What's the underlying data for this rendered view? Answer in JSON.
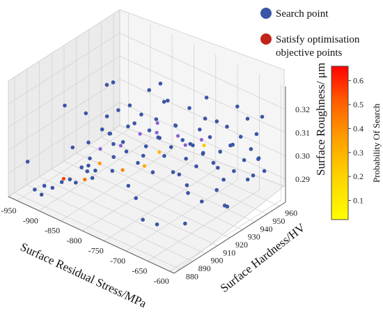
{
  "chart_data": {
    "type": "scatter",
    "title": "",
    "xlabel": "Surface Residual Stress/MPa",
    "ylabel": "Surface Hardness/HV",
    "zlabel": "Surface Roughness/ μm",
    "xlim": [
      -970,
      -590
    ],
    "ylim": [
      875,
      965
    ],
    "zlim": [
      0.28,
      0.33
    ],
    "x_ticks": [
      "-950",
      "-900",
      "-850",
      "-800",
      "-750",
      "-700",
      "-650",
      "-600"
    ],
    "y_ticks": [
      "880",
      "890",
      "900",
      "910",
      "920",
      "930",
      "940",
      "950",
      "960"
    ],
    "z_ticks": [
      "0.29",
      "0.30",
      "0.31",
      "0.32"
    ],
    "grid": true,
    "legend": {
      "placement": "top-right",
      "entries": [
        {
          "label": "Search point",
          "color": "#3b55a6"
        },
        {
          "label": "Satisfy optimisation objective points",
          "color": "#c0241a"
        }
      ]
    },
    "colorbar": {
      "label": "Probability Of Search",
      "ticks": [
        "0.1",
        "0.2",
        "0.3",
        "0.4",
        "0.5",
        "0.6"
      ],
      "range": [
        0.02,
        0.66
      ],
      "colors": [
        "#ffff00",
        "#ffd000",
        "#ff9a00",
        "#ff5a00",
        "#ff0000"
      ]
    },
    "series": [
      {
        "name": "Search point",
        "color": "#3b55a6",
        "points": [
          [
            -940,
            880,
            0.296
          ],
          [
            -935,
            884,
            0.283
          ],
          [
            -925,
            886,
            0.281
          ],
          [
            -930,
            890,
            0.283
          ],
          [
            -920,
            893,
            0.282
          ],
          [
            -910,
            897,
            0.284
          ],
          [
            -900,
            900,
            0.285
          ],
          [
            -895,
            903,
            0.283
          ],
          [
            -905,
            904,
            0.297
          ],
          [
            -890,
            906,
            0.289
          ],
          [
            -880,
            908,
            0.3
          ],
          [
            -880,
            908,
            0.29
          ],
          [
            -870,
            910,
            0.288
          ],
          [
            -860,
            912,
            0.306
          ],
          [
            -855,
            914,
            0.325
          ],
          [
            -850,
            915,
            0.304
          ],
          [
            -845,
            916,
            0.294
          ],
          [
            -840,
            918,
            0.314
          ],
          [
            -835,
            920,
            0.3
          ],
          [
            -830,
            921,
            0.296
          ],
          [
            -825,
            922,
            0.316
          ],
          [
            -820,
            924,
            0.308
          ],
          [
            -815,
            925,
            0.291
          ],
          [
            -810,
            926,
            0.312
          ],
          [
            -805,
            928,
            0.298
          ],
          [
            -800,
            929,
            0.305
          ],
          [
            -795,
            930,
            0.287
          ],
          [
            -790,
            931,
            0.31
          ],
          [
            -785,
            932,
            0.302
          ],
          [
            -780,
            934,
            0.294
          ],
          [
            -775,
            935,
            0.318
          ],
          [
            -770,
            936,
            0.298
          ],
          [
            -765,
            938,
            0.307
          ],
          [
            -760,
            939,
            0.286
          ],
          [
            -755,
            940,
            0.301
          ],
          [
            -750,
            941,
            0.293
          ],
          [
            -745,
            942,
            0.315
          ],
          [
            -740,
            943,
            0.299
          ],
          [
            -735,
            944,
            0.29
          ],
          [
            -730,
            945,
            0.306
          ],
          [
            -725,
            946,
            0.296
          ],
          [
            -720,
            947,
            0.32
          ],
          [
            -715,
            948,
            0.303
          ],
          [
            -710,
            949,
            0.292
          ],
          [
            -705,
            950,
            0.31
          ],
          [
            -700,
            951,
            0.297
          ],
          [
            -695,
            952,
            0.285
          ],
          [
            -690,
            953,
            0.308
          ],
          [
            -685,
            954,
            0.3
          ],
          [
            -680,
            955,
            0.289
          ],
          [
            -675,
            956,
            0.317
          ],
          [
            -670,
            957,
            0.304
          ],
          [
            -665,
            958,
            0.294
          ],
          [
            -660,
            959,
            0.312
          ],
          [
            -655,
            960,
            0.299
          ],
          [
            -650,
            960,
            0.288
          ],
          [
            -645,
            961,
            0.306
          ],
          [
            -640,
            961,
            0.296
          ],
          [
            -635,
            962,
            0.314
          ],
          [
            -630,
            962,
            0.291
          ],
          [
            -900,
            930,
            0.302
          ],
          [
            -880,
            940,
            0.296
          ],
          [
            -860,
            950,
            0.31
          ],
          [
            -840,
            955,
            0.305
          ],
          [
            -820,
            945,
            0.318
          ],
          [
            -800,
            950,
            0.3
          ],
          [
            -780,
            955,
            0.292
          ],
          [
            -760,
            960,
            0.303
          ],
          [
            -940,
            910,
            0.31
          ],
          [
            -920,
            920,
            0.305
          ],
          [
            -900,
            935,
            0.315
          ],
          [
            -880,
            925,
            0.298
          ],
          [
            -860,
            900,
            0.292
          ],
          [
            -840,
            895,
            0.301
          ],
          [
            -820,
            890,
            0.296
          ],
          [
            -800,
            900,
            0.309
          ],
          [
            -780,
            905,
            0.291
          ],
          [
            -760,
            910,
            0.304
          ],
          [
            -740,
            915,
            0.312
          ],
          [
            -720,
            920,
            0.297
          ],
          [
            -700,
            925,
            0.288
          ],
          [
            -680,
            930,
            0.305
          ],
          [
            -660,
            935,
            0.299
          ],
          [
            -640,
            940,
            0.309
          ],
          [
            -620,
            945,
            0.294
          ],
          [
            -610,
            950,
            0.302
          ],
          [
            -700,
            900,
            0.283
          ],
          [
            -650,
            905,
            0.286
          ],
          [
            -720,
            890,
            0.296
          ],
          [
            -690,
            885,
            0.291
          ],
          [
            -760,
            885,
            0.306
          ],
          [
            -660,
            910,
            0.3
          ],
          [
            -640,
            915,
            0.293
          ],
          [
            -620,
            920,
            0.298
          ],
          [
            -610,
            925,
            0.29
          ],
          [
            -630,
            930,
            0.287
          ]
        ]
      },
      {
        "name": "Satisfy optimisation objective points",
        "color": "#c0241a",
        "points": [
          [
            -870,
            914,
            0.296,
            0.12
          ],
          [
            -840,
            920,
            0.298,
            0.05
          ],
          [
            -810,
            925,
            0.304,
            0.08
          ],
          [
            -800,
            935,
            0.302,
            0.1
          ],
          [
            -790,
            932,
            0.308,
            0.06
          ],
          [
            -760,
            938,
            0.303,
            0.04
          ],
          [
            -760,
            944,
            0.297,
            0.09
          ],
          [
            -740,
            950,
            0.299,
            0.07
          ],
          [
            -900,
            895,
            0.287,
            0.55
          ],
          [
            -880,
            905,
            0.285,
            0.45
          ],
          [
            -860,
            910,
            0.292,
            0.35
          ],
          [
            -830,
            918,
            0.289,
            0.4
          ],
          [
            -800,
            925,
            0.291,
            0.3
          ],
          [
            -780,
            930,
            0.297,
            0.25
          ],
          [
            -720,
            945,
            0.3,
            0.2
          ]
        ]
      }
    ]
  }
}
